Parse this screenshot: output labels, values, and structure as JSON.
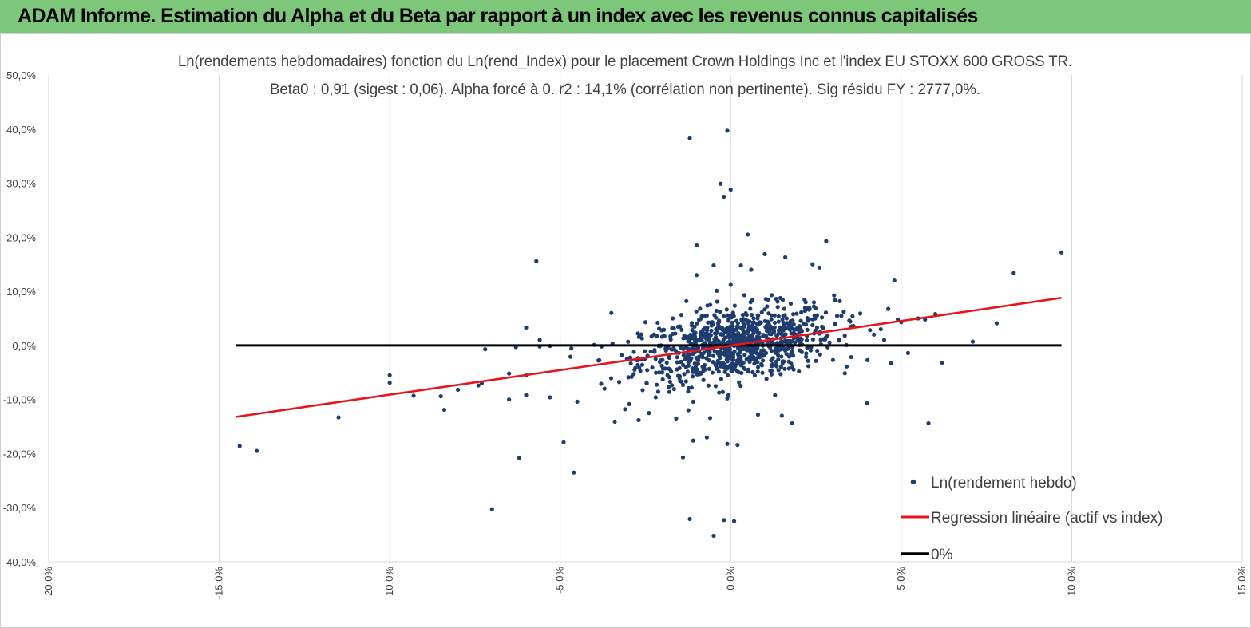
{
  "header": {
    "title": "ADAM Informe. Estimation du Alpha et du Beta par rapport à un index avec les revenus connus capitalisés"
  },
  "colors": {
    "header_bg": "#7dc77a",
    "points": "#1f3c6e",
    "regression": "#e8141b",
    "zero_line": "#000000",
    "grid": "#d9d9d9",
    "accent_corner": "#f0a400"
  },
  "chart_data": {
    "type": "scatter",
    "title": "Ln(rendements hebdomadaires) fonction du Ln(rend_Index) pour le placement Crown Holdings Inc et l'index EU STOXX 600 GROSS TR.",
    "subtitle": "Beta0 : 0,91 (sigest : 0,06). Alpha forcé à 0. r2 : 14,1% (corrélation non pertinente). Sig résidu FY : 2777,0%.",
    "xlabel": "",
    "ylabel": "",
    "xlim": [
      -0.2,
      0.15
    ],
    "ylim": [
      -0.4,
      0.5
    ],
    "x_ticks": [
      -0.2,
      -0.15,
      -0.1,
      -0.05,
      0.0,
      0.05,
      0.1,
      0.15
    ],
    "x_tick_labels": [
      "-20,0%",
      "-15,0%",
      "-10,0%",
      "-5,0%",
      "0,0%",
      "5,0%",
      "10,0%",
      "15,0%"
    ],
    "y_ticks": [
      -0.4,
      -0.3,
      -0.2,
      -0.1,
      0.0,
      0.1,
      0.2,
      0.3,
      0.4,
      0.5
    ],
    "y_tick_labels": [
      "-40,0%",
      "-30,0%",
      "-20,0%",
      "-10,0%",
      "0,0%",
      "10,0%",
      "20,0%",
      "30,0%",
      "40,0%",
      "50,0%"
    ],
    "grid": "vertical",
    "legend_position": "bottom-right",
    "series": [
      {
        "name": "Ln(rendement hebdo)",
        "kind": "scatter",
        "points": [
          [
            -0.144,
            -0.186
          ],
          [
            -0.139,
            -0.195
          ],
          [
            -0.115,
            -0.133
          ],
          [
            -0.1,
            -0.055
          ],
          [
            -0.1,
            -0.069
          ],
          [
            -0.093,
            -0.093
          ],
          [
            -0.085,
            -0.094
          ],
          [
            -0.084,
            -0.119
          ],
          [
            -0.08,
            -0.082
          ],
          [
            -0.074,
            -0.074
          ],
          [
            -0.073,
            -0.07
          ],
          [
            -0.072,
            -0.007
          ],
          [
            -0.07,
            -0.303
          ],
          [
            -0.065,
            -0.052
          ],
          [
            -0.065,
            -0.1
          ],
          [
            -0.063,
            -0.003
          ],
          [
            -0.062,
            -0.208
          ],
          [
            -0.06,
            0.033
          ],
          [
            -0.06,
            -0.055
          ],
          [
            -0.06,
            -0.092
          ],
          [
            -0.057,
            0.156
          ],
          [
            -0.056,
            0.01
          ],
          [
            -0.056,
            -0.002
          ],
          [
            -0.053,
            -0.001
          ],
          [
            -0.053,
            -0.096
          ],
          [
            -0.049,
            -0.179
          ],
          [
            -0.047,
            -0.021
          ],
          [
            -0.046,
            -0.235
          ],
          [
            -0.045,
            -0.104
          ],
          [
            -0.04,
            0.001
          ],
          [
            -0.038,
            -0.071
          ],
          [
            -0.037,
            -0.08
          ],
          [
            -0.035,
            0.06
          ],
          [
            -0.034,
            -0.141
          ],
          [
            -0.032,
            -0.018
          ],
          [
            -0.031,
            -0.118
          ],
          [
            -0.03,
            -0.059
          ],
          [
            -0.028,
            -0.042
          ],
          [
            -0.027,
            -0.138
          ],
          [
            -0.026,
            0.013
          ],
          [
            -0.025,
            0.043
          ],
          [
            -0.024,
            -0.125
          ],
          [
            -0.023,
            -0.041
          ],
          [
            -0.022,
            -0.096
          ],
          [
            -0.021,
            -0.05
          ],
          [
            -0.021,
            0.031
          ],
          [
            -0.02,
            -0.027
          ],
          [
            -0.018,
            -0.086
          ],
          [
            -0.018,
            -0.023
          ],
          [
            -0.017,
            0.05
          ],
          [
            -0.016,
            -0.135
          ],
          [
            -0.015,
            -0.042
          ],
          [
            -0.014,
            -0.207
          ],
          [
            -0.014,
            -0.073
          ],
          [
            -0.013,
            0.082
          ],
          [
            -0.012,
            0.383
          ],
          [
            -0.012,
            -0.321
          ],
          [
            -0.011,
            -0.176
          ],
          [
            -0.011,
            -0.104
          ],
          [
            -0.01,
            0.185
          ],
          [
            -0.01,
            0.13
          ],
          [
            -0.009,
            0.068
          ],
          [
            -0.008,
            -0.064
          ],
          [
            -0.007,
            -0.17
          ],
          [
            -0.006,
            0.075
          ],
          [
            -0.005,
            0.148
          ],
          [
            -0.004,
            0.081
          ],
          [
            -0.004,
            0.001
          ],
          [
            -0.003,
            0.299
          ],
          [
            -0.002,
            0.275
          ],
          [
            -0.002,
            0.054
          ],
          [
            -0.001,
            -0.098
          ],
          [
            0.0,
            0.288
          ],
          [
            0.0,
            0.112
          ],
          [
            0.001,
            -0.035
          ],
          [
            -0.002,
            -0.323
          ],
          [
            -0.001,
            -0.182
          ],
          [
            -0.005,
            -0.352
          ],
          [
            0.001,
            -0.325
          ],
          [
            0.002,
            -0.184
          ],
          [
            -0.001,
            0.397
          ],
          [
            0.003,
            0.148
          ],
          [
            0.004,
            0.093
          ],
          [
            0.005,
            0.205
          ],
          [
            0.006,
            0.14
          ],
          [
            0.008,
            -0.128
          ],
          [
            0.01,
            0.169
          ],
          [
            0.012,
            0.093
          ],
          [
            0.013,
            -0.092
          ],
          [
            0.015,
            -0.13
          ],
          [
            0.016,
            0.163
          ],
          [
            0.018,
            -0.144
          ],
          [
            0.02,
            -0.048
          ],
          [
            0.022,
            0.08
          ],
          [
            0.024,
            0.15
          ],
          [
            0.026,
            0.144
          ],
          [
            0.028,
            0.193
          ],
          [
            0.03,
            -0.027
          ],
          [
            0.032,
            0.082
          ],
          [
            0.034,
            -0.039
          ],
          [
            0.036,
            0.036
          ],
          [
            0.038,
            0.059
          ],
          [
            0.04,
            -0.107
          ],
          [
            0.042,
            0.02
          ],
          [
            0.044,
            0.03
          ],
          [
            0.045,
            0.01
          ],
          [
            0.048,
            0.12
          ],
          [
            0.05,
            0.043
          ],
          [
            0.052,
            -0.014
          ],
          [
            0.055,
            0.05
          ],
          [
            0.058,
            -0.144
          ],
          [
            0.06,
            0.058
          ],
          [
            0.062,
            -0.032
          ],
          [
            0.071,
            0.007
          ],
          [
            0.078,
            0.041
          ],
          [
            0.083,
            0.134
          ],
          [
            0.097,
            0.172
          ],
          [
            0.057,
            0.048
          ],
          [
            0.049,
            0.048
          ],
          [
            0.047,
            -0.033
          ]
        ],
        "cloud": {
          "count": 900,
          "x_mean": 0.002,
          "x_sd": 0.014,
          "beta": 0.91,
          "resid_sd": 0.032
        }
      },
      {
        "name": "Regression linéaire (actif vs index)",
        "kind": "line",
        "points": [
          [
            -0.145,
            -0.132
          ],
          [
            0.097,
            0.088
          ]
        ]
      },
      {
        "name": "0%",
        "kind": "line",
        "points": [
          [
            -0.145,
            0.0
          ],
          [
            0.097,
            0.0
          ]
        ]
      }
    ]
  }
}
